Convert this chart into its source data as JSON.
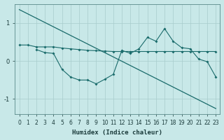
{
  "xlabel": "Humidex (Indice chaleur)",
  "bg_color": "#c8e8e8",
  "grid_color": "#a8cccc",
  "line_color": "#1a6b6b",
  "xlim": [
    -0.5,
    23.5
  ],
  "ylim": [
    -1.4,
    1.5
  ],
  "yticks": [
    -1,
    0,
    1
  ],
  "xticks": [
    0,
    1,
    2,
    3,
    4,
    5,
    6,
    7,
    8,
    9,
    10,
    11,
    12,
    13,
    14,
    15,
    16,
    17,
    18,
    19,
    20,
    21,
    22,
    23
  ],
  "line1_x": [
    0,
    23
  ],
  "line1_y": [
    1.35,
    -1.25
  ],
  "line2_x": [
    0,
    1,
    2,
    3,
    4,
    5,
    6,
    7,
    8,
    9,
    10,
    11,
    12,
    13,
    14,
    15,
    16,
    17,
    18,
    19,
    20,
    21,
    22,
    23
  ],
  "line2_y": [
    0.42,
    0.42,
    0.37,
    0.37,
    0.37,
    0.34,
    0.32,
    0.3,
    0.28,
    0.27,
    0.26,
    0.25,
    0.25,
    0.25,
    0.25,
    0.25,
    0.25,
    0.25,
    0.25,
    0.25,
    0.25,
    0.25,
    0.25,
    0.25
  ],
  "line3_x": [
    2,
    3,
    4,
    5,
    6,
    7,
    8,
    9,
    10,
    11,
    12,
    13,
    14,
    15,
    16,
    17,
    18,
    19,
    20,
    21,
    22,
    23
  ],
  "line3_y": [
    0.3,
    0.22,
    0.2,
    -0.22,
    -0.42,
    -0.5,
    -0.5,
    -0.6,
    -0.48,
    -0.35,
    0.28,
    0.2,
    0.32,
    0.62,
    0.52,
    0.85,
    0.52,
    0.35,
    0.32,
    0.05,
    -0.02,
    -0.42
  ]
}
